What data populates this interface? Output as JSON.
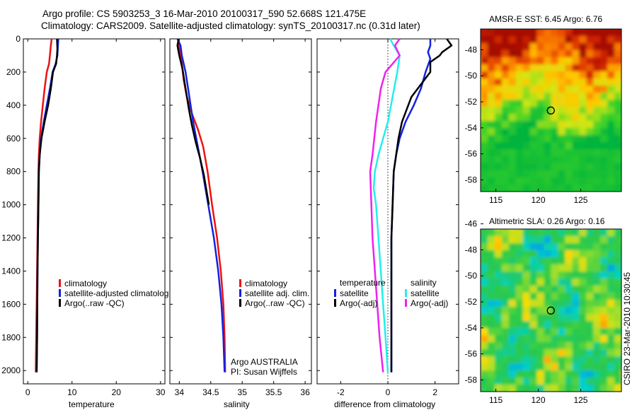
{
  "title": {
    "line1": "Argo profile: CS 5903253_3 16-Mar-2010 20100317_590 52.668S 121.475E",
    "line2": "Climatology: CARS2009. Satellite-adjusted climatology: synTS_20100317.nc (0.31d later)"
  },
  "side_label": "CSIRO 23-Mar-2010 10:30:45",
  "colors": {
    "red": "#ee1111",
    "blue": "#1122dd",
    "black": "#000000",
    "cyan": "#22eeee",
    "magenta": "#ee22ee"
  },
  "chart_data": [
    {
      "type": "line",
      "name": "temperature-profile",
      "xlabel": "temperature",
      "ylabel": "",
      "xlim": [
        -1,
        31
      ],
      "ylim": [
        2080,
        0
      ],
      "xticks": [
        0,
        10,
        20,
        30
      ],
      "yticks": [
        0,
        200,
        400,
        600,
        800,
        1000,
        1200,
        1400,
        1600,
        1800,
        2000
      ],
      "legend": {
        "placement": "bottom-right",
        "entries": [
          {
            "label": "climatology",
            "color": "red"
          },
          {
            "label": "satellite-adjusted climatolog",
            "color": "blue"
          },
          {
            "label": "Argo(..raw -QC)",
            "color": "black"
          }
        ]
      },
      "series": [
        {
          "key": "climatology",
          "color": "red",
          "points": [
            [
              5.4,
              0
            ],
            [
              5.2,
              40
            ],
            [
              5.0,
              100
            ],
            [
              4.8,
              150
            ],
            [
              4.3,
              200
            ],
            [
              3.8,
              300
            ],
            [
              3.4,
              400
            ],
            [
              3.0,
              500
            ],
            [
              2.7,
              600
            ],
            [
              2.5,
              700
            ],
            [
              2.4,
              800
            ],
            [
              2.3,
              1000
            ],
            [
              2.2,
              1200
            ],
            [
              2.1,
              1400
            ],
            [
              2.0,
              1600
            ],
            [
              1.9,
              1800
            ],
            [
              1.8,
              2010
            ]
          ]
        },
        {
          "key": "satellite",
          "color": "blue",
          "points": [
            [
              6.9,
              0
            ],
            [
              6.8,
              40
            ],
            [
              6.7,
              100
            ],
            [
              6.3,
              150
            ],
            [
              5.6,
              200
            ],
            [
              5.0,
              300
            ],
            [
              4.3,
              400
            ],
            [
              3.6,
              500
            ],
            [
              3.0,
              600
            ],
            [
              2.7,
              700
            ],
            [
              2.5,
              800
            ],
            [
              2.4,
              1000
            ],
            [
              2.3,
              1200
            ],
            [
              2.2,
              1400
            ],
            [
              2.15,
              1600
            ],
            [
              2.1,
              1800
            ],
            [
              2.0,
              2010
            ]
          ]
        },
        {
          "key": "argo",
          "color": "black",
          "points": [
            [
              6.6,
              0
            ],
            [
              6.7,
              60
            ],
            [
              6.6,
              100
            ],
            [
              6.4,
              150
            ],
            [
              5.7,
              200
            ],
            [
              5.2,
              300
            ],
            [
              4.6,
              400
            ],
            [
              3.8,
              500
            ],
            [
              3.1,
              600
            ],
            [
              2.7,
              700
            ],
            [
              2.5,
              800
            ],
            [
              2.4,
              1000
            ],
            [
              2.3,
              1200
            ],
            [
              2.2,
              1400
            ],
            [
              2.15,
              1600
            ],
            [
              2.1,
              1800
            ],
            [
              2.0,
              2010
            ]
          ]
        }
      ]
    },
    {
      "type": "line",
      "name": "salinity-profile",
      "xlabel": "salinity",
      "ylabel": "",
      "xlim": [
        33.85,
        36.1
      ],
      "ylim": [
        2080,
        0
      ],
      "xticks": [
        34,
        34.5,
        35,
        35.5,
        36
      ],
      "tick_labels": [
        "34",
        "34.5",
        "35",
        "35.5",
        "36"
      ],
      "legend": {
        "placement": "bottom-right",
        "entries": [
          {
            "label": "climatology",
            "color": "red"
          },
          {
            "label": "satellite adj. clim.",
            "color": "blue"
          },
          {
            "label": "Argo(..raw -QC)",
            "color": "black"
          }
        ]
      },
      "annotation": {
        "line1": "Argo AUSTRALIA",
        "line2": "PI: Susan Wijffels"
      },
      "series": [
        {
          "key": "climatology",
          "color": "red",
          "points": [
            [
              33.98,
              0
            ],
            [
              34.0,
              60
            ],
            [
              34.04,
              150
            ],
            [
              34.07,
              250
            ],
            [
              34.12,
              350
            ],
            [
              34.2,
              450
            ],
            [
              34.3,
              550
            ],
            [
              34.38,
              650
            ],
            [
              34.45,
              800
            ],
            [
              34.52,
              1000
            ],
            [
              34.6,
              1200
            ],
            [
              34.66,
              1400
            ],
            [
              34.7,
              1600
            ],
            [
              34.72,
              1800
            ],
            [
              34.73,
              2010
            ]
          ]
        },
        {
          "key": "satellite",
          "color": "blue",
          "points": [
            [
              33.97,
              0
            ],
            [
              34.02,
              40
            ],
            [
              34.04,
              100
            ],
            [
              34.1,
              200
            ],
            [
              34.14,
              300
            ],
            [
              34.18,
              400
            ],
            [
              34.22,
              500
            ],
            [
              34.27,
              600
            ],
            [
              34.32,
              700
            ],
            [
              34.37,
              800
            ],
            [
              34.46,
              1000
            ],
            [
              34.55,
              1200
            ],
            [
              34.62,
              1400
            ],
            [
              34.67,
              1600
            ],
            [
              34.7,
              1800
            ],
            [
              34.72,
              2010
            ]
          ]
        },
        {
          "key": "argo",
          "color": "black",
          "points": [
            [
              33.99,
              0
            ],
            [
              33.97,
              40
            ],
            [
              34.0,
              100
            ],
            [
              34.05,
              180
            ],
            [
              34.1,
              300
            ],
            [
              34.15,
              420
            ],
            [
              34.2,
              520
            ],
            [
              34.26,
              620
            ],
            [
              34.33,
              720
            ],
            [
              34.39,
              820
            ],
            [
              34.47,
              1000
            ]
          ]
        }
      ]
    },
    {
      "type": "line",
      "name": "difference-profile",
      "xlabel": "difference from climatology",
      "ylabel": "",
      "xlim": [
        -3,
        3
      ],
      "ylim": [
        2080,
        0
      ],
      "xticks": [
        -2,
        0,
        2
      ],
      "tick_labels": [
        "-2",
        "0",
        "2"
      ],
      "zero_line": true,
      "legend": {
        "placement": "bottom",
        "groups": [
          {
            "heading": "temperature",
            "entries": [
              {
                "label": "satellite",
                "color": "blue"
              },
              {
                "label": "Argo(-adj)",
                "color": "black"
              }
            ]
          },
          {
            "heading": "salinity",
            "entries": [
              {
                "label": "satellite",
                "color": "cyan"
              },
              {
                "label": "Argo(-adj)",
                "color": "magenta"
              }
            ]
          }
        ]
      },
      "series": [
        {
          "key": "temp-satellite",
          "color": "blue",
          "points": [
            [
              1.8,
              0
            ],
            [
              1.8,
              40
            ],
            [
              1.7,
              80
            ],
            [
              1.8,
              120
            ],
            [
              1.6,
              200
            ],
            [
              1.4,
              300
            ],
            [
              1.1,
              400
            ],
            [
              0.75,
              500
            ],
            [
              0.5,
              600
            ],
            [
              0.35,
              700
            ],
            [
              0.25,
              800
            ],
            [
              0.2,
              1000
            ],
            [
              0.15,
              1200
            ],
            [
              0.15,
              1400
            ],
            [
              0.15,
              1600
            ],
            [
              0.15,
              1800
            ],
            [
              0.15,
              2010
            ]
          ]
        },
        {
          "key": "temp-argo",
          "color": "black",
          "points": [
            [
              2.5,
              0
            ],
            [
              2.7,
              40
            ],
            [
              2.3,
              80
            ],
            [
              2.2,
              100
            ],
            [
              1.8,
              140
            ],
            [
              1.8,
              200
            ],
            [
              1.0,
              350
            ],
            [
              0.6,
              500
            ],
            [
              0.45,
              600
            ],
            [
              0.35,
              700
            ],
            [
              0.25,
              800
            ],
            [
              0.2,
              1000
            ],
            [
              0.15,
              1200
            ],
            [
              0.15,
              1400
            ],
            [
              0.15,
              1600
            ],
            [
              0.15,
              1800
            ],
            [
              0.15,
              2010
            ]
          ]
        },
        {
          "key": "sal-satellite",
          "color": "cyan",
          "points": [
            [
              0.1,
              0
            ],
            [
              0.25,
              40
            ],
            [
              0.5,
              100
            ],
            [
              0.4,
              200
            ],
            [
              0.0,
              500
            ],
            [
              -0.2,
              600
            ],
            [
              -0.4,
              700
            ],
            [
              -0.55,
              800
            ],
            [
              -0.6,
              900
            ],
            [
              -0.5,
              1000
            ],
            [
              -0.4,
              1200
            ],
            [
              -0.3,
              1400
            ],
            [
              -0.2,
              1600
            ],
            [
              -0.1,
              1800
            ],
            [
              0.0,
              2010
            ]
          ]
        },
        {
          "key": "sal-argo",
          "color": "magenta",
          "points": [
            [
              0.5,
              0
            ],
            [
              0.3,
              40
            ],
            [
              0.5,
              100
            ],
            [
              -0.1,
              200
            ],
            [
              -0.3,
              300
            ],
            [
              -0.4,
              400
            ],
            [
              -0.5,
              500
            ],
            [
              -0.65,
              700
            ],
            [
              -0.75,
              800
            ],
            [
              -0.7,
              1000
            ],
            [
              -0.65,
              1200
            ],
            [
              -0.55,
              1400
            ],
            [
              -0.45,
              1600
            ],
            [
              -0.35,
              1800
            ],
            [
              -0.2,
              2010
            ]
          ]
        }
      ]
    },
    {
      "type": "heatmap",
      "name": "sst-map",
      "title": "AMSR-E SST: 6.45 Argo: 6.76",
      "xlim": [
        113.2,
        129.8
      ],
      "ylim": [
        -58.9,
        -46.4
      ],
      "xticks": [
        115,
        120,
        125
      ],
      "yticks": [
        -48,
        -50,
        -52,
        -54,
        -56,
        -58
      ],
      "marker": {
        "lon": 121.475,
        "lat": -52.668
      }
    },
    {
      "type": "heatmap",
      "name": "sla-map",
      "title": "Altimetric SLA: 0.26 Argo: 0.16",
      "xlim": [
        113.2,
        129.8
      ],
      "ylim": [
        -58.9,
        -46.4
      ],
      "xticks": [
        115,
        120,
        125
      ],
      "yticks": [
        -46,
        -48,
        -50,
        -52,
        -54,
        -56,
        -58
      ],
      "marker": {
        "lon": 121.475,
        "lat": -52.668
      }
    }
  ]
}
